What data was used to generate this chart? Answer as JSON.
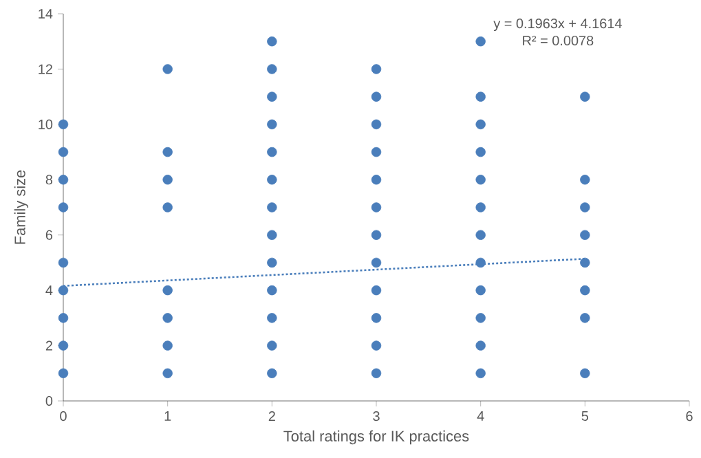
{
  "chart_data": {
    "type": "scatter",
    "xlabel": "Total ratings for IK practices",
    "ylabel": "Family size",
    "annotations": [
      "y = 0.1963x + 4.1614",
      "R² = 0.0078"
    ],
    "xlim": [
      0,
      6
    ],
    "xticks": [
      0,
      1,
      2,
      3,
      4,
      5,
      6
    ],
    "ylim": [
      0,
      14
    ],
    "yticks": [
      0,
      2,
      4,
      6,
      8,
      10,
      12,
      14
    ],
    "grid": false,
    "series": [
      {
        "color": "#4a7ebb",
        "marker": "circle",
        "x": [
          0,
          0,
          0,
          0,
          0,
          0,
          0,
          0,
          0,
          1,
          1,
          1,
          1,
          1,
          1,
          1,
          1,
          2,
          2,
          2,
          2,
          2,
          2,
          2,
          2,
          2,
          2,
          2,
          2,
          2,
          3,
          3,
          3,
          3,
          3,
          3,
          3,
          3,
          3,
          3,
          3,
          3,
          4,
          4,
          4,
          4,
          4,
          4,
          4,
          4,
          4,
          4,
          4,
          4,
          5,
          5,
          5,
          5,
          5,
          5,
          5,
          5
        ],
        "values": [
          10,
          9,
          8,
          7,
          5,
          4,
          3,
          2,
          1,
          12,
          9,
          8,
          7,
          4,
          3,
          2,
          1,
          13,
          12,
          11,
          10,
          9,
          8,
          7,
          6,
          5,
          4,
          3,
          2,
          1,
          12,
          11,
          10,
          9,
          8,
          7,
          6,
          5,
          4,
          3,
          2,
          1,
          13,
          11,
          10,
          9,
          8,
          7,
          6,
          5,
          4,
          3,
          2,
          1,
          11,
          8,
          7,
          6,
          5,
          4,
          3,
          1
        ]
      },
      {
        "type": "line",
        "color": "#4a7ebb",
        "marker": "none",
        "line_style": "dotted",
        "x": [
          0,
          5
        ],
        "values": [
          4.16,
          5.14
        ]
      }
    ]
  }
}
